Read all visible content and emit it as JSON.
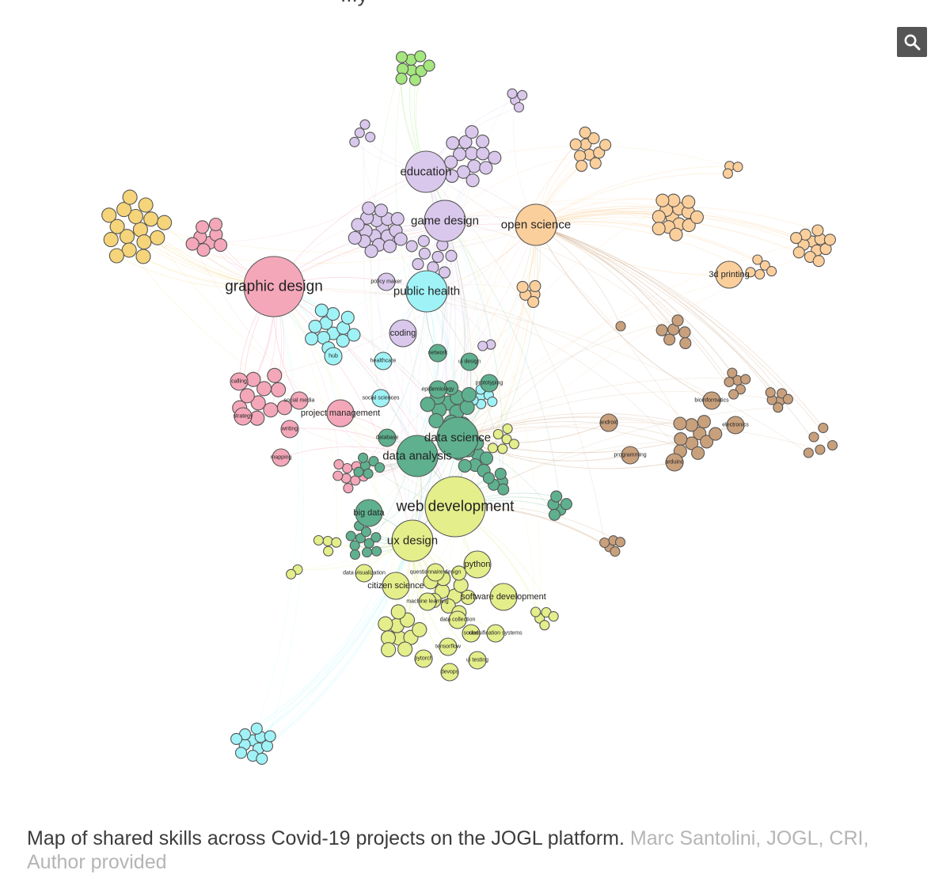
{
  "top_text": "...y",
  "zoom_icon": "magnifier-icon",
  "caption": {
    "text": "Map of shared skills across Covid-19 projects on the JOGL platform.",
    "credit": "Marc Santolini, JOGL, CRI, Author provided"
  },
  "colors": {
    "pink": "#f4a7b9",
    "purple": "#d9c8ec",
    "cyan": "#9ff3f7",
    "orange": "#fbcf9c",
    "teal": "#5fb08f",
    "yellow": "#e4ee8a",
    "brown": "#c9a07c",
    "green": "#a6e67e",
    "gold": "#f5d47a",
    "edge": "#d8d8d8"
  },
  "network": {
    "hubs": [
      {
        "id": "graphic-design",
        "label": "graphic design",
        "group": "pink",
        "size": "xl"
      },
      {
        "id": "education",
        "label": "education",
        "group": "purple",
        "size": "l"
      },
      {
        "id": "game-design",
        "label": "game design",
        "group": "purple",
        "size": "l"
      },
      {
        "id": "open-science",
        "label": "open science",
        "group": "orange",
        "size": "l"
      },
      {
        "id": "public-health",
        "label": "public health",
        "group": "cyan",
        "size": "l"
      },
      {
        "id": "3d-printing",
        "label": "3d printing",
        "group": "orange",
        "size": "m"
      },
      {
        "id": "coding",
        "label": "coding",
        "group": "purple",
        "size": "m"
      },
      {
        "id": "project-management",
        "label": "project management",
        "group": "pink",
        "size": "m"
      },
      {
        "id": "data-science",
        "label": "data science",
        "group": "teal",
        "size": "l"
      },
      {
        "id": "data-analysis",
        "label": "data analysis",
        "group": "teal",
        "size": "l"
      },
      {
        "id": "web-development",
        "label": "web development",
        "group": "yellow",
        "size": "xl"
      },
      {
        "id": "ux-design",
        "label": "ux design",
        "group": "yellow",
        "size": "l"
      },
      {
        "id": "big-data",
        "label": "big data",
        "group": "teal",
        "size": "m"
      },
      {
        "id": "python",
        "label": "python",
        "group": "yellow",
        "size": "m"
      },
      {
        "id": "citizen-science",
        "label": "citizen science",
        "group": "yellow",
        "size": "m"
      },
      {
        "id": "software-development",
        "label": "software development",
        "group": "yellow",
        "size": "m"
      },
      {
        "id": "social-sciences",
        "label": "social sciences",
        "group": "cyan",
        "size": "s"
      },
      {
        "id": "bioinformatics",
        "label": "bioinformatics",
        "group": "brown",
        "size": "s"
      },
      {
        "id": "electronics",
        "label": "electronics",
        "group": "brown",
        "size": "s"
      },
      {
        "id": "arduino",
        "label": "arduino",
        "group": "brown",
        "size": "s"
      },
      {
        "id": "android",
        "label": "android",
        "group": "brown",
        "size": "s"
      },
      {
        "id": "programming",
        "label": "programming",
        "group": "brown",
        "size": "s"
      },
      {
        "id": "network",
        "label": "network",
        "group": "teal",
        "size": "s"
      },
      {
        "id": "ui-design",
        "label": "ui design",
        "group": "teal",
        "size": "s"
      },
      {
        "id": "prototyping",
        "label": "prototyping",
        "group": "teal",
        "size": "s"
      },
      {
        "id": "database",
        "label": "database",
        "group": "teal",
        "size": "s"
      },
      {
        "id": "healthcare",
        "label": "healthcare",
        "group": "cyan",
        "size": "s"
      },
      {
        "id": "policy-maker",
        "label": "policy maker",
        "group": "purple",
        "size": "s"
      },
      {
        "id": "social-media",
        "label": "social media",
        "group": "pink",
        "size": "s"
      },
      {
        "id": "writing",
        "label": "writing",
        "group": "pink",
        "size": "s"
      },
      {
        "id": "mapping",
        "label": "mapping",
        "group": "pink",
        "size": "s"
      },
      {
        "id": "calling",
        "label": "calling",
        "group": "pink",
        "size": "s"
      },
      {
        "id": "strategy",
        "label": "strategy",
        "group": "pink",
        "size": "s"
      },
      {
        "id": "questionnaire-design",
        "label": "questionnaire design",
        "group": "yellow",
        "size": "s"
      },
      {
        "id": "data-visualization",
        "label": "data visualization",
        "group": "yellow",
        "size": "s"
      },
      {
        "id": "machine-learning",
        "label": "machine learning",
        "group": "yellow",
        "size": "s"
      },
      {
        "id": "classification-systems",
        "label": "classification systems",
        "group": "yellow",
        "size": "s"
      },
      {
        "id": "tensorflow",
        "label": "tensorflow",
        "group": "yellow",
        "size": "s"
      },
      {
        "id": "pytorch",
        "label": "pytorch",
        "group": "yellow",
        "size": "s"
      },
      {
        "id": "devops",
        "label": "devops",
        "group": "yellow",
        "size": "s"
      },
      {
        "id": "ui-testing",
        "label": "ui testing",
        "group": "yellow",
        "size": "s"
      },
      {
        "id": "sound",
        "label": "sound",
        "group": "yellow",
        "size": "s"
      },
      {
        "id": "data-collection",
        "label": "data collection",
        "group": "yellow",
        "size": "s"
      },
      {
        "id": "epidemiology",
        "label": "epidemiology",
        "group": "teal",
        "size": "s"
      },
      {
        "id": "hub",
        "label": "hub",
        "group": "cyan",
        "size": "s"
      }
    ]
  }
}
